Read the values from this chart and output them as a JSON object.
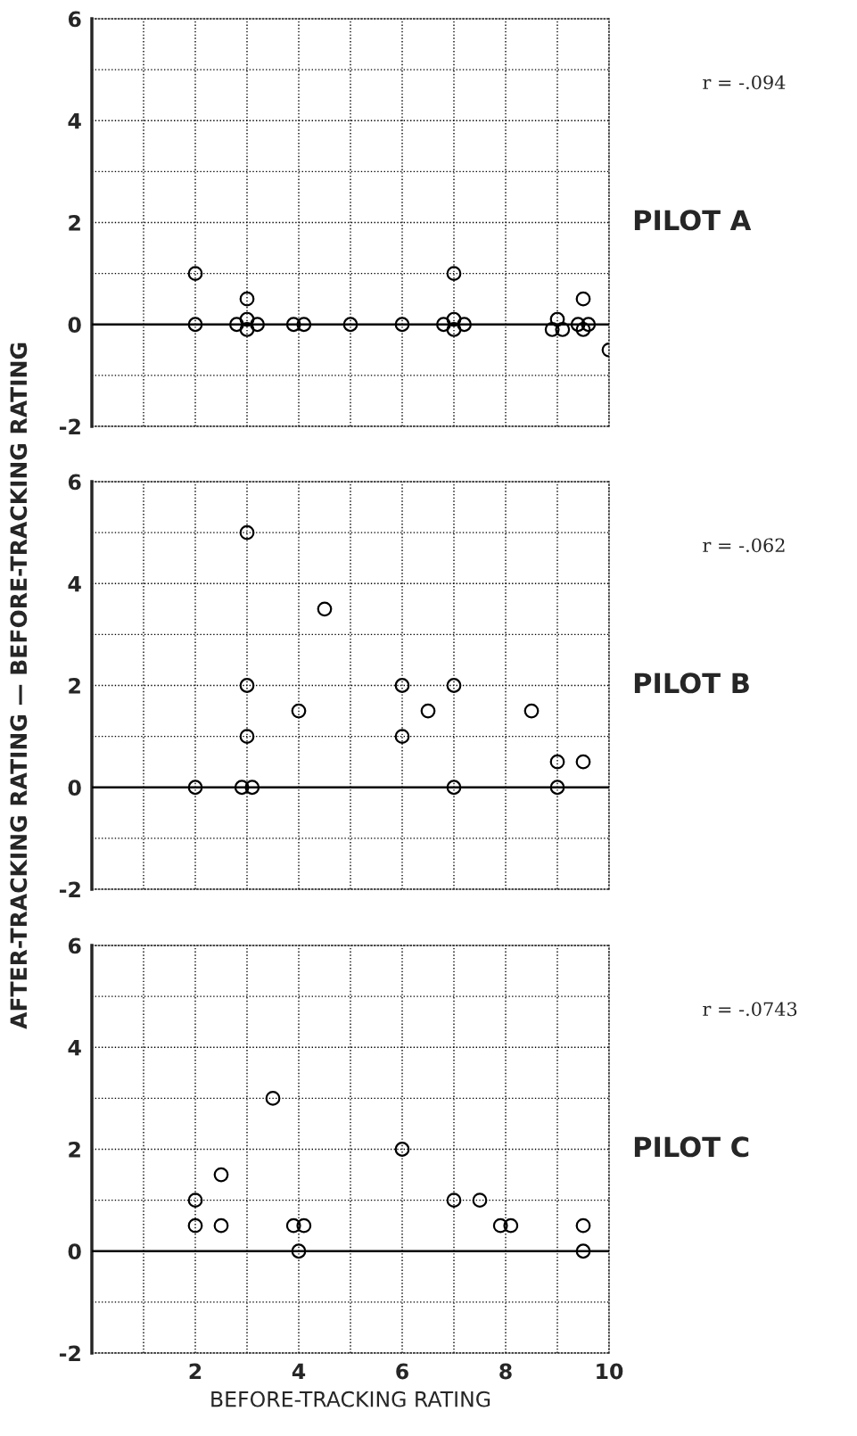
{
  "chart_data": [
    {
      "type": "scatter",
      "annotations": [
        "PILOT A",
        "r = -.094"
      ],
      "xlim": [
        0,
        10
      ],
      "ylim": [
        -2,
        6
      ],
      "xticks": [
        {
          "value": 0,
          "label": null
        },
        {
          "value": 1,
          "label": null
        },
        {
          "value": 2,
          "label": null
        },
        {
          "value": 3,
          "label": null
        },
        {
          "value": 4,
          "label": null
        },
        {
          "value": 5,
          "label": null
        },
        {
          "value": 6,
          "label": null
        },
        {
          "value": 7,
          "label": null
        },
        {
          "value": 8,
          "label": null
        },
        {
          "value": 9,
          "label": null
        },
        {
          "value": 10,
          "label": null
        }
      ],
      "yticks": [
        -2,
        {
          "value": -1,
          "label": null
        },
        0,
        {
          "value": 1,
          "label": null
        },
        2,
        {
          "value": 3,
          "label": null
        },
        4,
        {
          "value": 5,
          "label": null
        },
        6
      ],
      "tick_labels": "y",
      "grid": true,
      "marker": "circle",
      "legend": false,
      "ref_lines": [
        {
          "axis": "y",
          "value": 0,
          "color": "#000000"
        }
      ],
      "series": [
        {
          "color": "#000000",
          "x": [
            2,
            2,
            3,
            2.8,
            3,
            3.2,
            3,
            3.9,
            4.1,
            5,
            6,
            7,
            6.8,
            7,
            7.2,
            7,
            9,
            8.9,
            9.1,
            9.5,
            9.4,
            9.6,
            9.5,
            10
          ],
          "values": [
            1,
            0,
            0.5,
            0,
            0.1,
            0,
            -0.1,
            0,
            0,
            0,
            0,
            1,
            0,
            0.1,
            0,
            -0.1,
            0.1,
            -0.1,
            -0.1,
            0.5,
            0,
            0,
            -0.1,
            -0.5
          ]
        }
      ]
    },
    {
      "type": "scatter",
      "annotations": [
        "PILOT B",
        "r = -.062"
      ],
      "ylabel": "AFTER-TRACKING RATING — BEFORE-TRACKING RATING",
      "xlim": [
        0,
        10
      ],
      "ylim": [
        -2,
        6
      ],
      "xticks": [
        {
          "value": 0,
          "label": null
        },
        {
          "value": 1,
          "label": null
        },
        {
          "value": 2,
          "label": null
        },
        {
          "value": 3,
          "label": null
        },
        {
          "value": 4,
          "label": null
        },
        {
          "value": 5,
          "label": null
        },
        {
          "value": 6,
          "label": null
        },
        {
          "value": 7,
          "label": null
        },
        {
          "value": 8,
          "label": null
        },
        {
          "value": 9,
          "label": null
        },
        {
          "value": 10,
          "label": null
        }
      ],
      "yticks": [
        -2,
        {
          "value": -1,
          "label": null
        },
        0,
        {
          "value": 1,
          "label": null
        },
        2,
        {
          "value": 3,
          "label": null
        },
        4,
        {
          "value": 5,
          "label": null
        },
        6
      ],
      "tick_labels": "y",
      "grid": true,
      "marker": "circle",
      "legend": false,
      "ref_lines": [
        {
          "axis": "y",
          "value": 0,
          "color": "#000000"
        }
      ],
      "series": [
        {
          "color": "#000000",
          "x": [
            3,
            4.5,
            3,
            4,
            6,
            6.5,
            7,
            8.5,
            3,
            6,
            9,
            9.5,
            2,
            2.9,
            3.1,
            7,
            9
          ],
          "values": [
            5,
            3.5,
            2,
            1.5,
            2,
            1.5,
            2,
            1.5,
            1,
            1,
            0.5,
            0.5,
            0,
            0,
            0,
            0,
            0
          ]
        }
      ]
    },
    {
      "type": "scatter",
      "annotations": [
        "PILOT C",
        "r = -.0743"
      ],
      "xlabel": "BEFORE-TRACKING RATING",
      "xlim": [
        0,
        10
      ],
      "ylim": [
        -2,
        6
      ],
      "xticks": [
        {
          "value": 0,
          "label": null
        },
        {
          "value": 1,
          "label": null
        },
        2,
        {
          "value": 3,
          "label": null
        },
        4,
        {
          "value": 5,
          "label": null
        },
        6,
        {
          "value": 7,
          "label": null
        },
        8,
        {
          "value": 9,
          "label": null
        },
        10
      ],
      "yticks": [
        -2,
        {
          "value": -1,
          "label": null
        },
        0,
        {
          "value": 1,
          "label": null
        },
        2,
        {
          "value": 3,
          "label": null
        },
        4,
        {
          "value": 5,
          "label": null
        },
        6
      ],
      "grid": true,
      "marker": "circle",
      "legend": false,
      "ref_lines": [
        {
          "axis": "y",
          "value": 0,
          "color": "#000000"
        }
      ],
      "series": [
        {
          "color": "#000000",
          "x": [
            3.5,
            2.5,
            2,
            2,
            2.5,
            3.9,
            4.1,
            4,
            6,
            7,
            7.5,
            7.9,
            8.1,
            9.5,
            9.5
          ],
          "values": [
            3,
            1.5,
            1,
            0.5,
            0.5,
            0.5,
            0.5,
            0,
            2,
            1,
            1,
            0.5,
            0.5,
            0.5,
            0
          ]
        }
      ]
    }
  ]
}
